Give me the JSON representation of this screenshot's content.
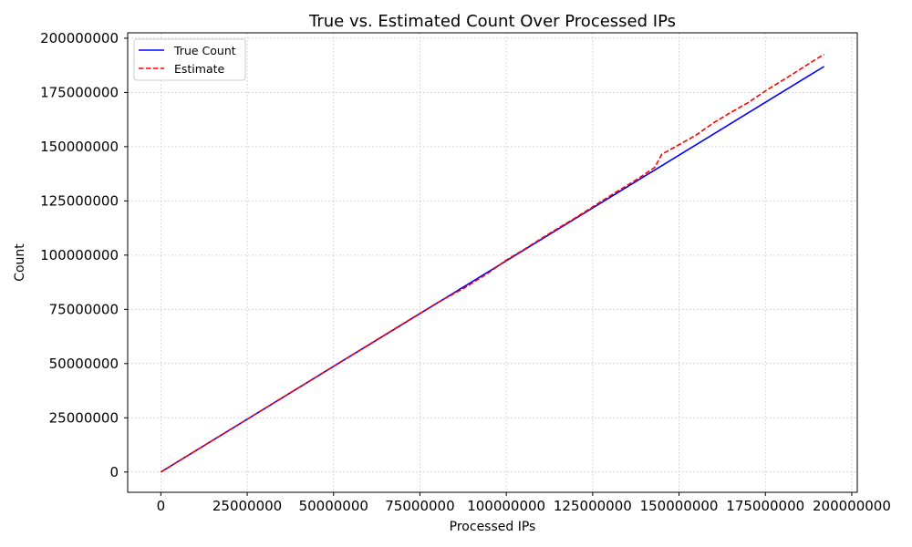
{
  "chart_data": {
    "type": "line",
    "title": "True vs. Estimated Count Over Processed IPs",
    "xlabel": "Processed IPs",
    "ylabel": "Count",
    "xlim": [
      -9600000,
      201600000
    ],
    "ylim": [
      -9350000,
      202500000
    ],
    "xticks": [
      0,
      25000000,
      50000000,
      75000000,
      100000000,
      125000000,
      150000000,
      175000000,
      200000000
    ],
    "yticks": [
      0,
      25000000,
      50000000,
      75000000,
      100000000,
      125000000,
      150000000,
      175000000,
      200000000
    ],
    "xtick_labels": [
      "0",
      "25000000",
      "50000000",
      "75000000",
      "100000000",
      "125000000",
      "150000000",
      "175000000",
      "200000000"
    ],
    "ytick_labels": [
      "0",
      "25000000",
      "50000000",
      "75000000",
      "100000000",
      "125000000",
      "150000000",
      "175000000",
      "200000000"
    ],
    "grid": true,
    "legend_position": "top-left",
    "series": [
      {
        "name": "True Count",
        "color": "#0000ff",
        "style": "solid",
        "x": [
          0,
          192000000
        ],
        "y": [
          0,
          187000000
        ]
      },
      {
        "name": "Estimate",
        "color": "#ff0000",
        "style": "dashed",
        "x": [
          0,
          20000000,
          40000000,
          60000000,
          70000000,
          80000000,
          88000000,
          95000000,
          100000000,
          105000000,
          112000000,
          120000000,
          130000000,
          138000000,
          143000000,
          145000000,
          150000000,
          155000000,
          160000000,
          165000000,
          170000000,
          175000000,
          180000000,
          185000000,
          190000000,
          192000000
        ],
        "y": [
          0,
          19500000,
          39000000,
          58500000,
          68300000,
          78000000,
          85000000,
          92000000,
          97700000,
          102500000,
          109500000,
          117200000,
          127300000,
          135100000,
          140500000,
          146500000,
          150900000,
          155400000,
          161000000,
          165800000,
          170300000,
          175700000,
          180600000,
          185600000,
          190700000,
          192500000
        ]
      }
    ]
  }
}
